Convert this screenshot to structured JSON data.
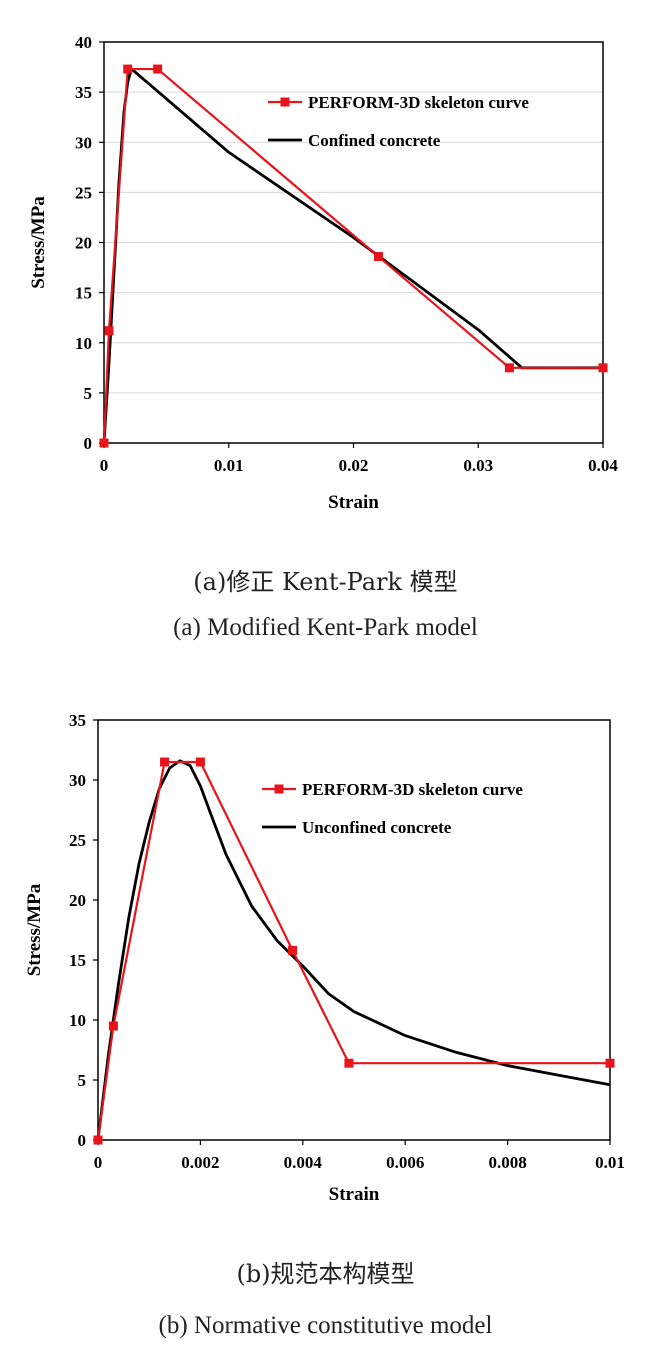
{
  "colors": {
    "skeleton": "#e8141c",
    "model": "#000000",
    "axis": "#000000",
    "grid": "#d9d9d9"
  },
  "captions": {
    "a_cn": "(a)修正 Kent-Park 模型",
    "a_en": "(a) Modified Kent-Park model",
    "b_cn": "(b)规范本构模型",
    "b_en": "(b) Normative constitutive model"
  },
  "chart_data": [
    {
      "type": "line",
      "title": "",
      "xlabel": "Strain",
      "ylabel": "Stress/MPa",
      "xlim": [
        0,
        0.04
      ],
      "ylim": [
        0,
        40
      ],
      "xticks": [
        0,
        0.01,
        0.02,
        0.03,
        0.04
      ],
      "xtick_labels": [
        "0",
        "0.01",
        "0.02",
        "0.03",
        "0.04"
      ],
      "yticks": [
        0,
        5,
        10,
        15,
        20,
        25,
        30,
        35,
        40
      ],
      "ytick_labels": [
        "0",
        "5",
        "10",
        "15",
        "20",
        "25",
        "30",
        "35",
        "40"
      ],
      "grid": "horizontal",
      "legend_position": "top-right",
      "series": [
        {
          "name": "PERFORM-3D skeleton curve",
          "color": "#e8141c",
          "marker": "square",
          "x": [
            0,
            0.0004,
            0.0019,
            0.0043,
            0.022,
            0.0325,
            0.04
          ],
          "y": [
            0,
            11.2,
            37.3,
            37.3,
            18.6,
            7.5,
            7.5
          ]
        },
        {
          "name": "Confined concrete",
          "color": "#000000",
          "marker": "none",
          "x": [
            0,
            0.0004,
            0.0008,
            0.0012,
            0.0016,
            0.0019,
            0.0022,
            0.0025,
            0.01,
            0.02,
            0.03,
            0.0335,
            0.04
          ],
          "y": [
            0,
            8,
            17,
            26,
            33,
            36,
            37.3,
            37,
            29,
            20.5,
            11.3,
            7.5,
            7.5
          ]
        }
      ]
    },
    {
      "type": "line",
      "title": "",
      "xlabel": "Strain",
      "ylabel": "Stress/MPa",
      "xlim": [
        0,
        0.01
      ],
      "ylim": [
        0,
        35
      ],
      "xticks": [
        0,
        0.002,
        0.004,
        0.006,
        0.008,
        0.01
      ],
      "xtick_labels": [
        "0",
        "0.002",
        "0.004",
        "0.006",
        "0.008",
        "0.01"
      ],
      "yticks": [
        0,
        5,
        10,
        15,
        20,
        25,
        30,
        35
      ],
      "ytick_labels": [
        "0",
        "5",
        "10",
        "15",
        "20",
        "25",
        "30",
        "35"
      ],
      "grid": "none",
      "legend_position": "top-right",
      "series": [
        {
          "name": "PERFORM-3D skeleton curve",
          "color": "#e8141c",
          "marker": "square",
          "x": [
            0,
            0.0003,
            0.0013,
            0.002,
            0.0038,
            0.0049,
            0.01
          ],
          "y": [
            0,
            9.5,
            31.5,
            31.5,
            15.8,
            6.4,
            6.4
          ]
        },
        {
          "name": "Unconfined concrete",
          "color": "#000000",
          "marker": "none",
          "x": [
            0,
            0.0002,
            0.0004,
            0.0006,
            0.0008,
            0.001,
            0.0012,
            0.0014,
            0.0016,
            0.0018,
            0.002,
            0.0022,
            0.0025,
            0.003,
            0.0035,
            0.004,
            0.0045,
            0.005,
            0.006,
            0.007,
            0.008,
            0.009,
            0.01
          ],
          "y": [
            0,
            7,
            13,
            18.5,
            23,
            26.5,
            29.3,
            31,
            31.6,
            31.2,
            29.5,
            27.2,
            23.8,
            19.5,
            16.6,
            14.5,
            12.2,
            10.7,
            8.7,
            7.3,
            6.2,
            5.4,
            4.6
          ]
        }
      ]
    }
  ]
}
